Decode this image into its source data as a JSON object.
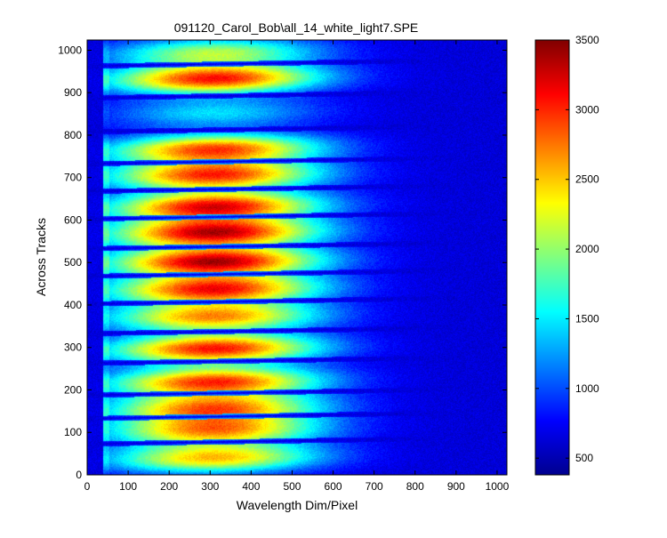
{
  "chart_data": {
    "type": "heatmap",
    "title": "091120_Carol_Bob\\all_14_white_light7.SPE",
    "xlabel": "Wavelength Dim/Pixel",
    "ylabel": "Across Tracks",
    "xlim": [
      0,
      1024
    ],
    "ylim": [
      0,
      1024
    ],
    "x_ticks": [
      0,
      100,
      200,
      300,
      400,
      500,
      600,
      700,
      800,
      900,
      1000
    ],
    "y_ticks": [
      0,
      100,
      200,
      300,
      400,
      500,
      600,
      700,
      800,
      900,
      1000
    ],
    "colorbar": {
      "colormap": "jet",
      "range": [
        380,
        3500
      ],
      "ticks": [
        500,
        1000,
        1500,
        2000,
        2500,
        3000,
        3500
      ]
    },
    "tracks": [
      {
        "center": 42,
        "peak": 2500
      },
      {
        "center": 107,
        "peak": 2600
      },
      {
        "center": 160,
        "peak": 2700
      },
      {
        "center": 222,
        "peak": 2950
      },
      {
        "center": 300,
        "peak": 3050
      },
      {
        "center": 375,
        "peak": 2650
      },
      {
        "center": 440,
        "peak": 3050
      },
      {
        "center": 505,
        "peak": 3300
      },
      {
        "center": 573,
        "peak": 3250
      },
      {
        "center": 635,
        "peak": 3150
      },
      {
        "center": 708,
        "peak": 2950
      },
      {
        "center": 770,
        "peak": 2900
      },
      {
        "center": 855,
        "peak": 1450
      },
      {
        "center": 935,
        "peak": 3050
      },
      {
        "center": 998,
        "peak": 2050
      }
    ],
    "gaps": [
      80,
      140,
      195,
      270,
      340,
      410,
      475,
      540,
      610,
      675,
      740,
      815,
      895,
      970
    ]
  }
}
